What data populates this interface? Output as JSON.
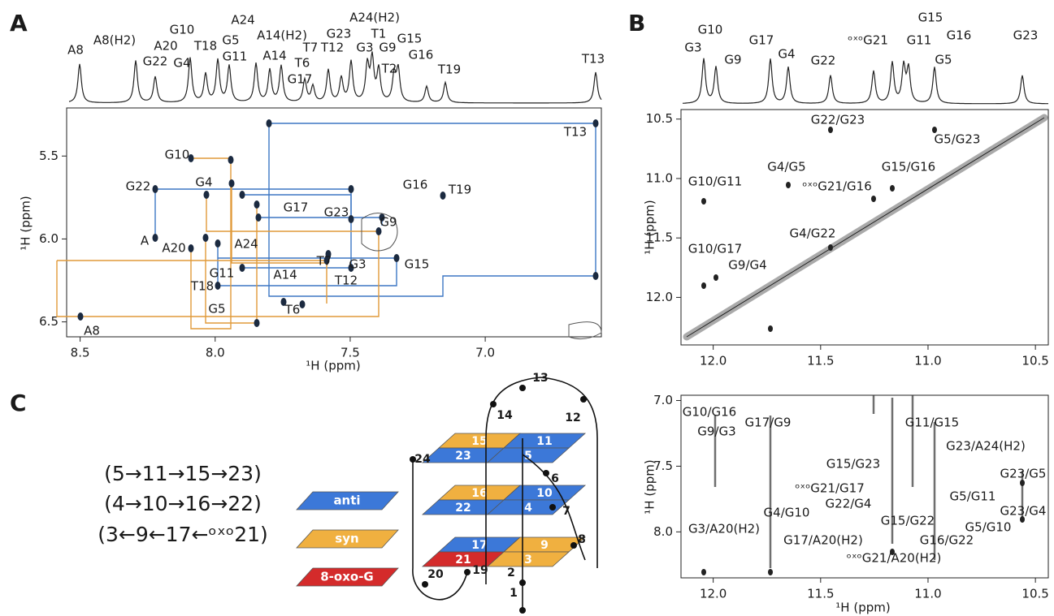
{
  "panel_a": {
    "letter": "A",
    "x_axis_label": "¹H (ppm)",
    "y_axis_label": "¹H (ppm)",
    "xlim": [
      8.55,
      6.57
    ],
    "xticks": [
      8.5,
      {
        "value": 8,
        "label": "8.0"
      },
      7.5,
      {
        "value": 7,
        "label": "7.0"
      }
    ],
    "ylim": [
      5.21,
      6.59
    ],
    "yticks": [
      5.5,
      {
        "value": 6,
        "label": "6.0"
      },
      6.5
    ],
    "peak_labels": [
      {
        "text": "A8",
        "color": "#1a1a1a"
      },
      {
        "text": "A8(H2)",
        "color": "#1a1a1a"
      },
      {
        "text": "G22",
        "color": "#1d5fbe"
      },
      {
        "text": "A20",
        "color": "#1a1a1a"
      },
      {
        "text": "G10",
        "color": "#1d5fbe"
      },
      {
        "text": "G4",
        "color": "#1d5fbe"
      },
      {
        "text": "T18",
        "color": "#1a1a1a"
      },
      {
        "text": "G5",
        "color": "#1d5fbe"
      },
      {
        "text": "G11",
        "color": "#1d5fbe"
      },
      {
        "text": "A24",
        "color": "#1a1a1a"
      },
      {
        "text": "A14(H2)",
        "color": "#1a1a1a"
      },
      {
        "text": "A14",
        "color": "#1a1a1a"
      },
      {
        "text": "G17",
        "color": "#1d5fbe"
      },
      {
        "text": "T6",
        "color": "#1a1a1a"
      },
      {
        "text": "G23",
        "color": "#1d5fbe"
      },
      {
        "text": "T12",
        "color": "#1a1a1a"
      },
      {
        "text": "T7",
        "color": "#1a1a1a"
      },
      {
        "text": "A24(H2)",
        "color": "#1a1a1a"
      },
      {
        "text": "G3",
        "color": "#d67a12"
      },
      {
        "text": "G9",
        "color": "#d67a12"
      },
      {
        "text": "T1",
        "color": "#1a1a1a"
      },
      {
        "text": "T2",
        "color": "#1a1a1a"
      },
      {
        "text": "G15",
        "color": "#d67a12"
      },
      {
        "text": "G16",
        "color": "#d67a12"
      },
      {
        "text": "T19",
        "color": "#1a1a1a"
      },
      {
        "text": "T13",
        "color": "#1a1a1a"
      }
    ],
    "crosspeak_labels": [
      "T13",
      "G10",
      "G22",
      "G4",
      "A",
      "A20",
      "G17",
      "G23",
      "G16",
      "T19",
      "G9",
      "A24",
      "G3",
      "G15",
      "T7",
      "G11",
      "A14",
      "T12",
      "T18",
      "G5",
      "T6",
      "A8"
    ]
  },
  "panel_b": {
    "letter": "B",
    "x_axis_label": "¹H (ppm)",
    "y_axis_label": "¹H (ppm)",
    "xlim": [
      12.15,
      10.44
    ],
    "xticks": [
      {
        "value": 12,
        "label": "12.0"
      },
      11.5,
      {
        "value": 11,
        "label": "11.0"
      },
      10.5
    ],
    "peak_labels": [
      "G3",
      "G10",
      "G9",
      "G17",
      "G4",
      "G22",
      "ᵒˣᵒG21",
      "G15",
      "G11",
      "G16",
      "G5",
      "G23"
    ],
    "upper": {
      "ylim": [
        10.42,
        12.4
      ],
      "yticks": [
        10.5,
        {
          "value": 11,
          "label": "11.0"
        },
        11.5,
        {
          "value": 12,
          "label": "12.0"
        }
      ],
      "labels": [
        {
          "text": "G22/G23",
          "color": "#2143b0"
        },
        {
          "text": "G5/G23",
          "color": "#d67a12"
        },
        {
          "text": "G10/G11",
          "color": "#2143b0"
        },
        {
          "text": "G4/G5",
          "color": "#2143b0"
        },
        {
          "text": "ᵒˣᵒG21/G16",
          "color": "#2143b0"
        },
        {
          "text": "G15/G16",
          "color": "#2143b0"
        },
        {
          "text": "G4/G22",
          "color": "#d67a12"
        },
        {
          "text": "G10/G17",
          "color": "#2143b0"
        },
        {
          "text": "G9/G4",
          "color": "#2143b0"
        }
      ]
    },
    "lower": {
      "ylim": [
        6.96,
        8.35
      ],
      "yticks": [
        {
          "value": 7,
          "label": "7.0"
        },
        7.5,
        {
          "value": 8,
          "label": "8.0"
        }
      ],
      "labels": [
        {
          "text": "G10/G16",
          "color": "#d67a12"
        },
        {
          "text": "G9/G3",
          "color": "#d67a12"
        },
        {
          "text": "G17/G9",
          "color": "#d67a12"
        },
        {
          "text": "G11/G15",
          "color": "#d67a12"
        },
        {
          "text": "G23/A24(H2)",
          "color": "#1a1a1a"
        },
        {
          "text": "G15/G23",
          "color": "#d67a12"
        },
        {
          "text": "ᵒˣᵒG21/G17",
          "color": "#d67a12"
        },
        {
          "text": "G23/G5",
          "color": "#d67a12"
        },
        {
          "text": "G5/G11",
          "color": "#d67a12"
        },
        {
          "text": "G4/G10",
          "color": "#d67a12"
        },
        {
          "text": "G22/G4",
          "color": "#d67a12"
        },
        {
          "text": "G23/G4",
          "color": "#2143b0"
        },
        {
          "text": "G3/A20(H2)",
          "color": "#1a1a1a"
        },
        {
          "text": "G15/G22",
          "color": "#2143b0"
        },
        {
          "text": "G5/G10",
          "color": "#2143b0"
        },
        {
          "text": "G17/A20(H2)",
          "color": "#1a1a1a"
        },
        {
          "text": "G16/G22",
          "color": "#d67a12"
        },
        {
          "text": "ᵒˣᵒG21/A20(H2)",
          "color": "#1a1a1a"
        }
      ]
    }
  },
  "panel_c": {
    "letter": "C",
    "strands": [
      "(5→11→15→23)",
      "(4→10→16→22)",
      "(3←9←17←ᵒˣᵒ21)"
    ],
    "legend": [
      {
        "text": "anti",
        "color": "#3c78d8"
      },
      {
        "text": "syn",
        "color": "#f0b040"
      },
      {
        "text": "8-oxo-G",
        "color": "#d42b2b"
      }
    ],
    "tiles": [
      {
        "label": "15",
        "color": "#f0b040"
      },
      {
        "label": "11",
        "color": "#3c78d8"
      },
      {
        "label": "23",
        "color": "#3c78d8"
      },
      {
        "label": "5",
        "color": "#3c78d8"
      },
      {
        "label": "16",
        "color": "#f0b040"
      },
      {
        "label": "10",
        "color": "#3c78d8"
      },
      {
        "label": "22",
        "color": "#3c78d8"
      },
      {
        "label": "4",
        "color": "#3c78d8"
      },
      {
        "label": "17",
        "color": "#3c78d8"
      },
      {
        "label": "9",
        "color": "#f0b040"
      },
      {
        "label": "21",
        "color": "#d42b2b"
      },
      {
        "label": "3",
        "color": "#f0b040"
      }
    ],
    "residues": [
      "13",
      "14",
      "12",
      "24",
      "6",
      "7",
      "8",
      "20",
      "19",
      "2",
      "1"
    ]
  }
}
